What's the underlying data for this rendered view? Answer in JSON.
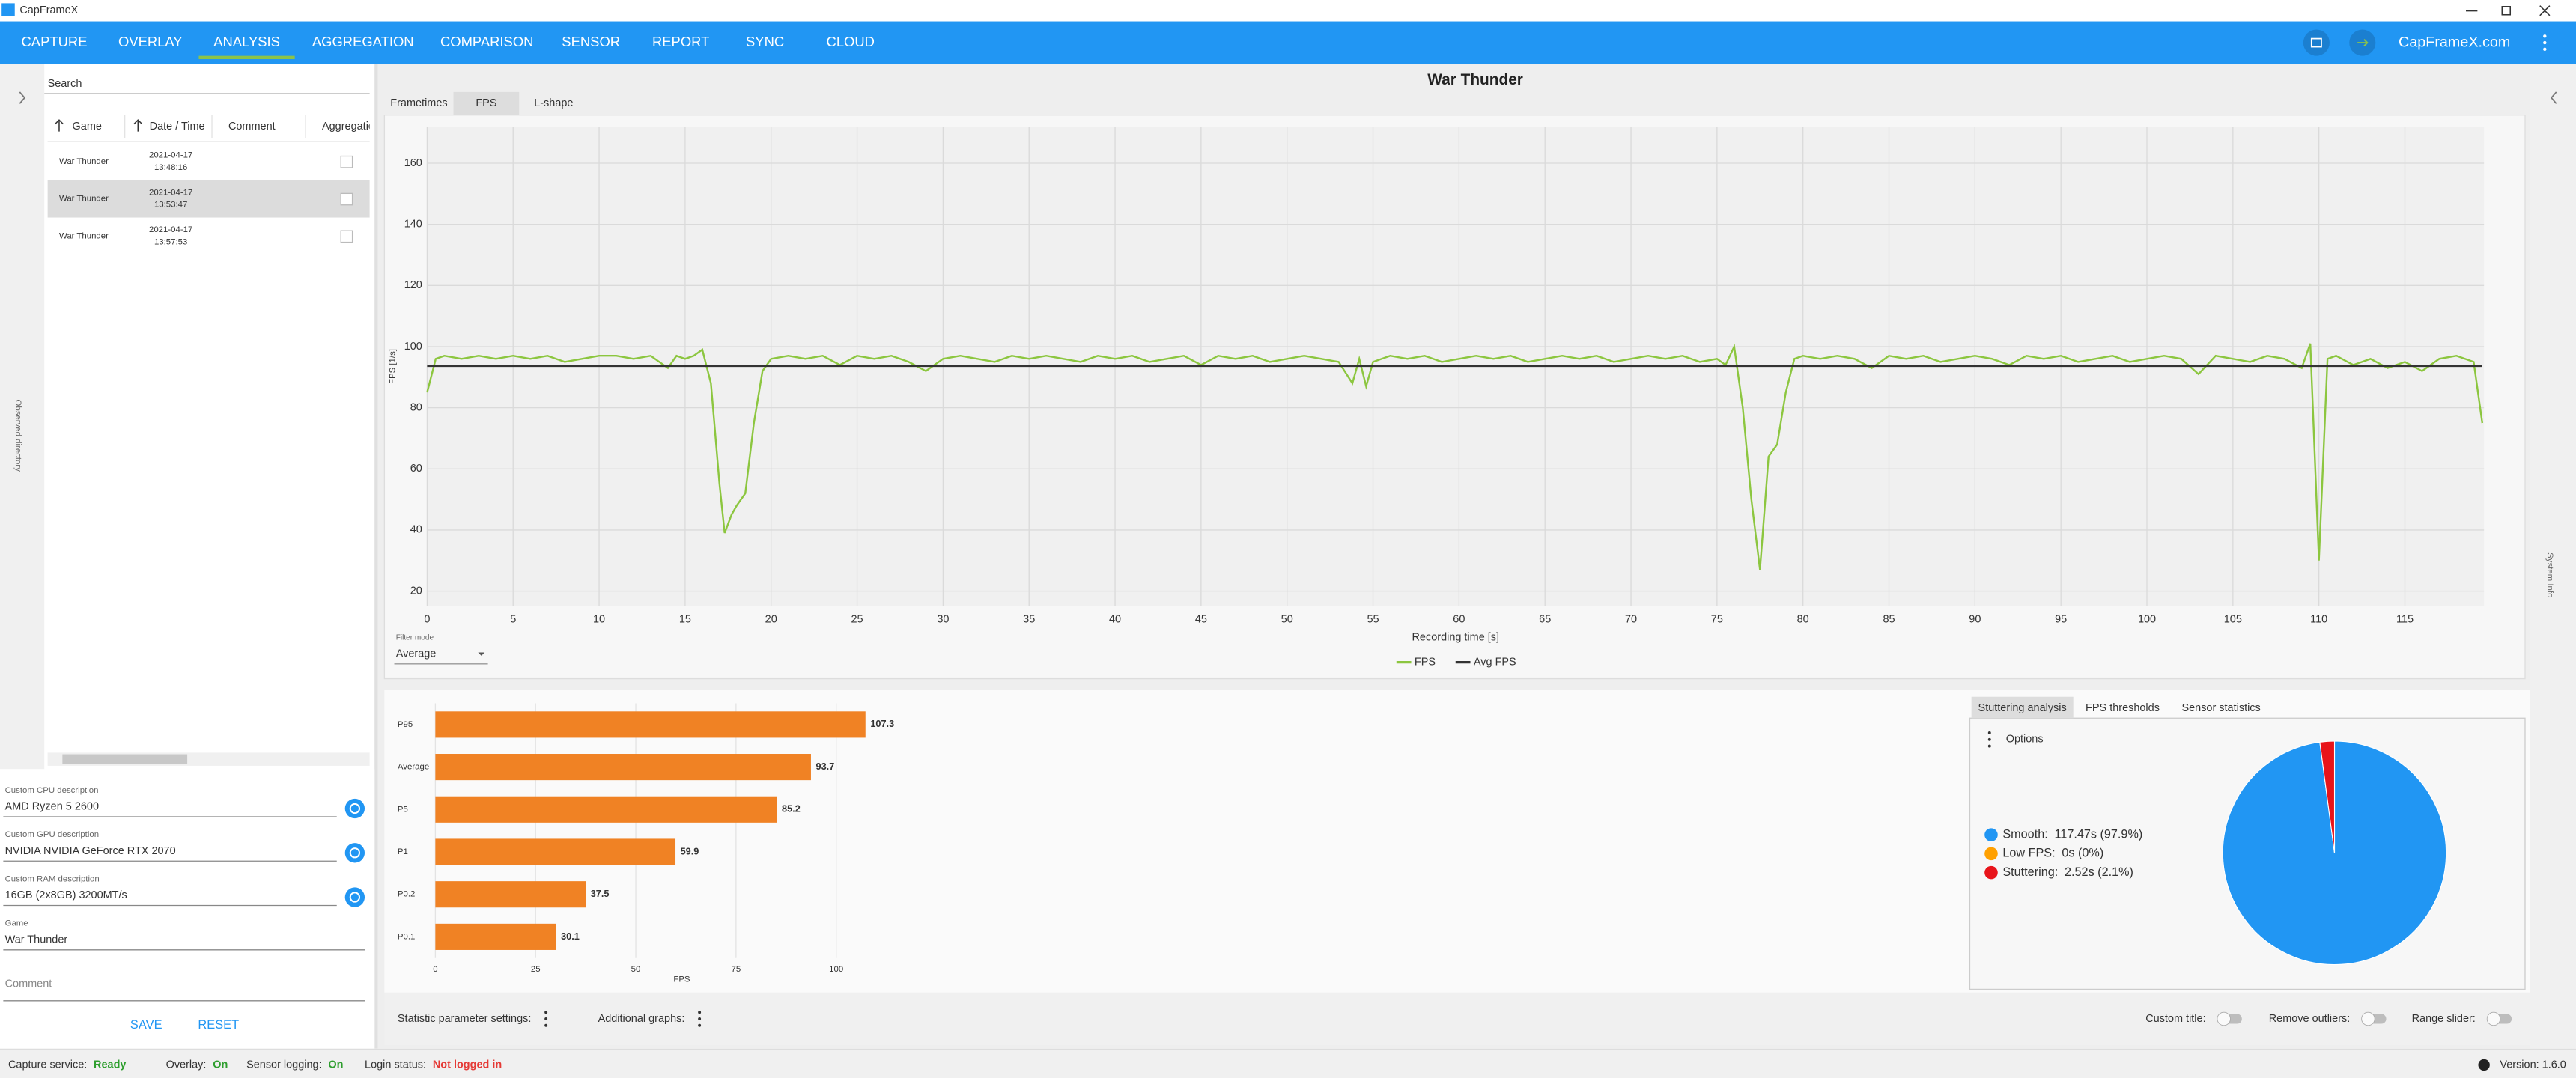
{
  "window": {
    "title": "CapFrameX"
  },
  "nav": {
    "items": [
      "CAPTURE",
      "OVERLAY",
      "ANALYSIS",
      "AGGREGATION",
      "COMPARISON",
      "SENSOR",
      "REPORT",
      "SYNC",
      "CLOUD"
    ],
    "active_index": 2,
    "link": "CapFrameX.com"
  },
  "sidebars": {
    "left": "Observed directory",
    "right": "System Info"
  },
  "records": {
    "search": "Search",
    "columns": [
      "Game",
      "Date / Time",
      "Comment",
      "Aggregation"
    ],
    "selected_index": 1,
    "rows": [
      {
        "game": "War Thunder",
        "date": "2021-04-17",
        "time": "13:48:16"
      },
      {
        "game": "War Thunder",
        "date": "2021-04-17",
        "time": "13:53:47"
      },
      {
        "game": "War Thunder",
        "date": "2021-04-17",
        "time": "13:57:53"
      }
    ]
  },
  "details": {
    "fields": [
      {
        "label": "Custom CPU description",
        "value": "AMD Ryzen 5 2600"
      },
      {
        "label": "Custom GPU description",
        "value": "NVIDIA NVIDIA GeForce RTX 2070"
      },
      {
        "label": "Custom RAM description",
        "value": "16GB (2x8GB) 3200MT/s"
      },
      {
        "label": "Game",
        "value": "War Thunder"
      },
      {
        "label": "Comment"
      }
    ],
    "buttons": [
      "SAVE",
      "RESET"
    ]
  },
  "analysis": {
    "title": "War Thunder",
    "tabs": [
      "Frametimes",
      "FPS",
      "L-shape"
    ],
    "active_tab": 1,
    "filter": {
      "label": "Filter mode",
      "value": "Average"
    }
  },
  "chart_data": [
    {
      "type": "line",
      "y_label": "FPS [1/s]",
      "x_label": "Recording time [s]",
      "grid": true,
      "xlim": [
        0,
        119.6
      ],
      "ylim": [
        15,
        172
      ],
      "xticks": [
        0,
        5,
        10,
        15,
        20,
        25,
        30,
        35,
        40,
        45,
        50,
        55,
        60,
        65,
        70,
        75,
        80,
        85,
        90,
        95,
        100,
        105,
        110,
        115
      ],
      "yticks": [
        20,
        40,
        60,
        80,
        100,
        120,
        140,
        160
      ],
      "series": [
        {
          "name": "FPS",
          "color": "#8cc63f",
          "x": [
            0,
            0.5,
            1,
            2,
            3,
            4,
            5,
            6,
            7,
            8,
            9,
            10,
            11,
            12,
            13,
            14,
            14.5,
            15,
            15.5,
            16,
            16.5,
            17,
            17.3,
            17.7,
            18,
            18.5,
            19,
            19.5,
            20,
            21,
            22,
            23,
            24,
            25,
            26,
            27,
            28,
            29,
            30,
            31,
            32,
            33,
            34,
            35,
            36,
            37,
            38,
            39,
            40,
            41,
            42,
            43,
            44,
            45,
            46,
            47,
            48,
            49,
            50,
            51,
            52,
            53,
            53.8,
            54.2,
            54.6,
            55,
            56,
            57,
            58,
            59,
            60,
            61,
            62,
            63,
            64,
            65,
            66,
            67,
            68,
            69,
            70,
            71,
            72,
            73,
            74,
            75,
            75.5,
            76,
            76.5,
            77,
            77.5,
            78,
            78.5,
            79,
            79.5,
            80,
            81,
            82,
            83,
            84,
            85,
            86,
            87,
            88,
            89,
            90,
            91,
            92,
            93,
            94,
            95,
            96,
            97,
            98,
            99,
            100,
            101,
            102,
            103,
            104,
            105,
            106,
            107,
            108,
            109,
            109.5,
            110,
            110.5,
            111,
            112,
            113,
            114,
            115,
            116,
            117,
            118,
            119,
            119.5
          ],
          "values": [
            85,
            96,
            97,
            96,
            97,
            96,
            97,
            96,
            97,
            95,
            96,
            97,
            97,
            96,
            97,
            93,
            97,
            96,
            97,
            99,
            88,
            55,
            39,
            45,
            48,
            52,
            75,
            92,
            96,
            97,
            96,
            97,
            94,
            97,
            96,
            97,
            95,
            92,
            96,
            97,
            96,
            95,
            97,
            96,
            97,
            96,
            95,
            97,
            96,
            97,
            95,
            96,
            97,
            94,
            97,
            96,
            97,
            95,
            96,
            97,
            96,
            95,
            88,
            96,
            87,
            95,
            97,
            96,
            97,
            95,
            96,
            97,
            96,
            97,
            95,
            96,
            97,
            96,
            97,
            95,
            96,
            97,
            96,
            97,
            95,
            96,
            94,
            100,
            80,
            50,
            27,
            64,
            68,
            85,
            96,
            97,
            96,
            97,
            96,
            93,
            97,
            96,
            97,
            95,
            96,
            97,
            96,
            94,
            97,
            96,
            97,
            95,
            96,
            97,
            95,
            96,
            97,
            96,
            91,
            97,
            96,
            95,
            97,
            96,
            93,
            101,
            30,
            96,
            97,
            94,
            96,
            93,
            95,
            92,
            96,
            97,
            95,
            75
          ]
        },
        {
          "name": "Avg FPS",
          "color": "#333333",
          "x": [
            0,
            119.5
          ],
          "values": [
            93.7,
            93.7
          ]
        }
      ]
    },
    {
      "type": "bar",
      "orientation": "horizontal",
      "x_label": "FPS",
      "color": "#f08224",
      "grid": true,
      "categories": [
        "P95",
        "Average",
        "P5",
        "P1",
        "P0.2",
        "P0.1"
      ],
      "values": [
        107.3,
        93.7,
        85.2,
        59.9,
        37.5,
        30.1
      ],
      "xlim": [
        0,
        110
      ],
      "xticks": [
        0,
        25,
        50,
        75,
        100
      ]
    },
    {
      "type": "pie",
      "categories": [
        "Smooth:",
        "Low FPS:",
        "Stuttering:"
      ],
      "values": [
        117.47,
        0,
        2.52
      ],
      "value_labels": [
        "117.47s (97.9%)",
        "0s (0%)",
        "2.52s (2.1%)"
      ],
      "colors": [
        "#2196f3",
        "#ffa000",
        "#e8141a"
      ]
    }
  ],
  "stats": {
    "tabs": [
      "Stuttering analysis",
      "FPS thresholds",
      "Sensor statistics"
    ],
    "active_tab": 0,
    "options": "Options"
  },
  "toolbar": {
    "left": [
      "Statistic parameter settings:",
      "Additional graphs:"
    ],
    "right": [
      "Custom title:",
      "Remove outliers:",
      "Range slider:"
    ]
  },
  "status": {
    "items": [
      {
        "label": "Capture service:",
        "value": "Ready",
        "color": "#2e9e2e"
      },
      {
        "label": "Overlay:",
        "value": "On",
        "color": "#2e9e2e"
      },
      {
        "label": "Sensor logging:",
        "value": "On",
        "color": "#2e9e2e"
      },
      {
        "label": "Login status:",
        "value": "Not logged in",
        "color": "#e53935"
      }
    ],
    "version": "Version: 1.6.0"
  }
}
